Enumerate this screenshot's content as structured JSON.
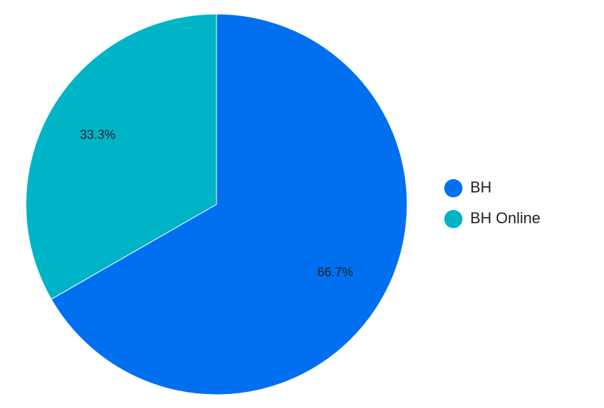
{
  "chart_data": {
    "type": "pie",
    "categories": [
      "BH",
      "BH Online"
    ],
    "values": [
      66.7,
      33.3
    ],
    "data_labels": [
      "66.7%",
      "33.3%"
    ],
    "colors": [
      "#0070f0",
      "#00b4c8"
    ],
    "legend_position": "right",
    "start": "top",
    "direction": "clockwise"
  }
}
